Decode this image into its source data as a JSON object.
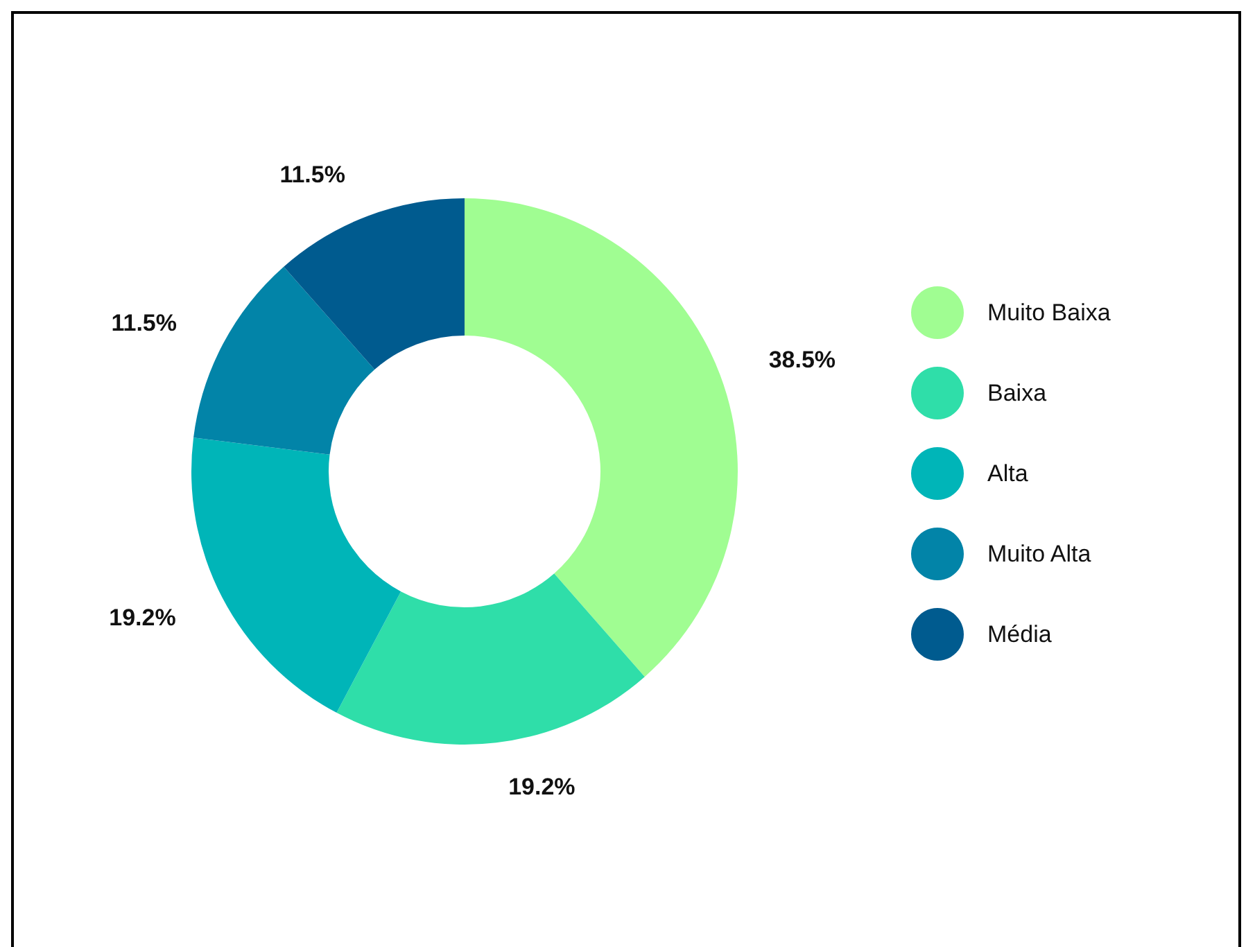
{
  "chart_data": {
    "type": "donut",
    "categories": [
      "Muito Baixa",
      "Baixa",
      "Alta",
      "Muito Alta",
      "Média"
    ],
    "values": [
      38.5,
      19.2,
      19.2,
      11.5,
      11.5
    ],
    "colors": [
      "#a0fd92",
      "#2fdea9",
      "#00b5b8",
      "#0284a8",
      "#005b8f"
    ],
    "value_labels": [
      "38.5%",
      "19.2%",
      "19.2%",
      "11.5%",
      "11.5%"
    ],
    "legend": "right"
  }
}
